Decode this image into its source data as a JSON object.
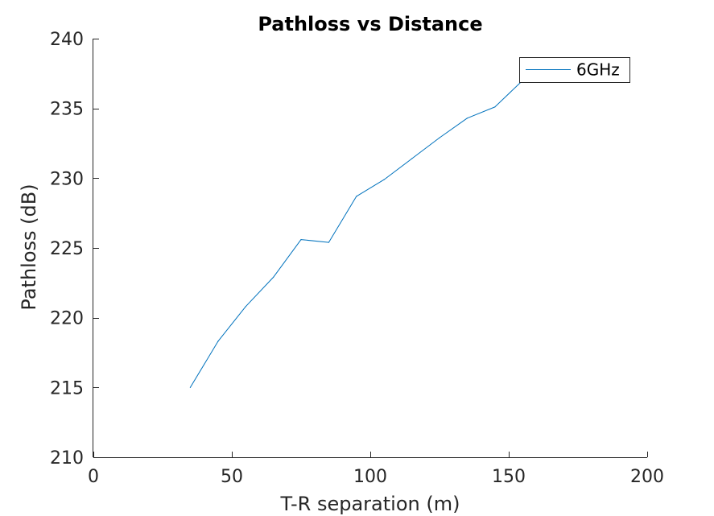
{
  "chart_data": {
    "type": "line",
    "title": "Pathloss vs Distance",
    "xlabel": "T-R separation (m)",
    "ylabel": "Pathloss (dB)",
    "xlim": [
      0,
      200
    ],
    "ylim": [
      210,
      240
    ],
    "xticks": [
      0,
      50,
      100,
      150,
      200
    ],
    "yticks": [
      210,
      215,
      220,
      225,
      230,
      235,
      240
    ],
    "grid": false,
    "legend_position": "top-right",
    "series": [
      {
        "name": "6GHz",
        "color": "#0072BD",
        "x": [
          35,
          45,
          55,
          65,
          75,
          85,
          95,
          105,
          115,
          125,
          135,
          145,
          155,
          165
        ],
        "y": [
          215.0,
          218.3,
          220.8,
          222.9,
          225.6,
          225.4,
          228.7,
          229.9,
          231.4,
          232.9,
          234.3,
          235.1,
          237.0,
          238.4
        ]
      }
    ]
  }
}
